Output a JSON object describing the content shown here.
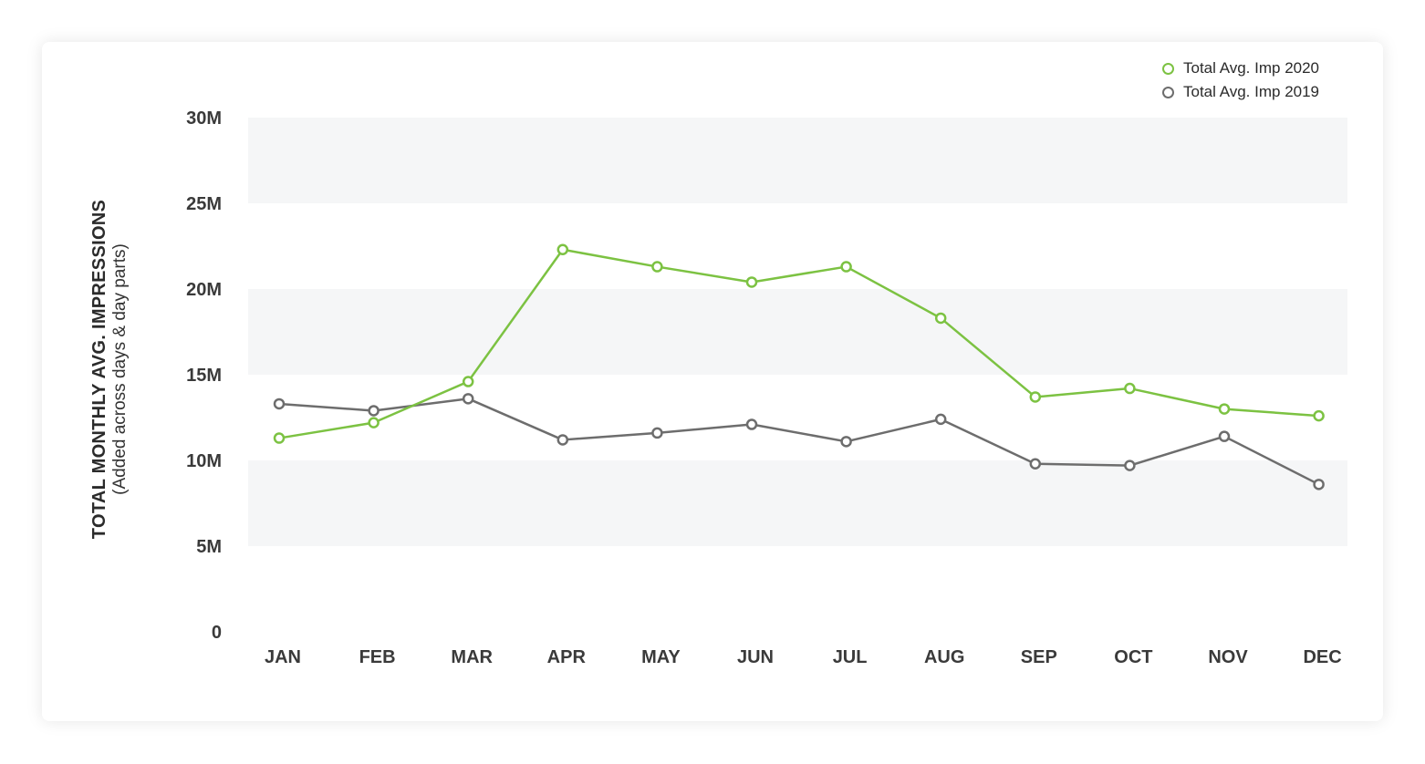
{
  "colors": {
    "series_2020": "#7cc242",
    "series_2019": "#6d6d6d",
    "band": "#f5f6f7"
  },
  "ylabel": {
    "main": "TOTAL MONTHLY AVG. IMPRESSIONS",
    "sub": "(Added across days & day parts)"
  },
  "legend": [
    {
      "label": "Total Avg. Imp 2020"
    },
    {
      "label": "Total Avg. Imp 2019"
    }
  ],
  "chart_data": {
    "type": "line",
    "title": "",
    "xlabel": "",
    "ylabel": "TOTAL MONTHLY AVG. IMPRESSIONS (Added across days & day parts)",
    "categories": [
      "JAN",
      "FEB",
      "MAR",
      "APR",
      "MAY",
      "JUN",
      "JUL",
      "AUG",
      "SEP",
      "OCT",
      "NOV",
      "DEC"
    ],
    "ylim": [
      0,
      30000000
    ],
    "yticks": [
      {
        "value": 0,
        "label": "0"
      },
      {
        "value": 5000000,
        "label": "5M"
      },
      {
        "value": 10000000,
        "label": "10M"
      },
      {
        "value": 15000000,
        "label": "15M"
      },
      {
        "value": 20000000,
        "label": "20M"
      },
      {
        "value": 25000000,
        "label": "25M"
      },
      {
        "value": 30000000,
        "label": "30M"
      }
    ],
    "series": [
      {
        "name": "Total Avg. Imp 2020",
        "color": "#7cc242",
        "values": [
          11300000,
          12200000,
          14600000,
          22300000,
          21300000,
          20400000,
          21300000,
          18300000,
          13700000,
          14200000,
          13000000,
          12600000
        ]
      },
      {
        "name": "Total Avg. Imp 2019",
        "color": "#6d6d6d",
        "values": [
          13300000,
          12900000,
          13600000,
          11200000,
          11600000,
          12100000,
          11100000,
          12400000,
          9800000,
          9700000,
          11400000,
          8600000
        ]
      }
    ],
    "grid": "alternating bands",
    "legend_position": "top-right"
  }
}
